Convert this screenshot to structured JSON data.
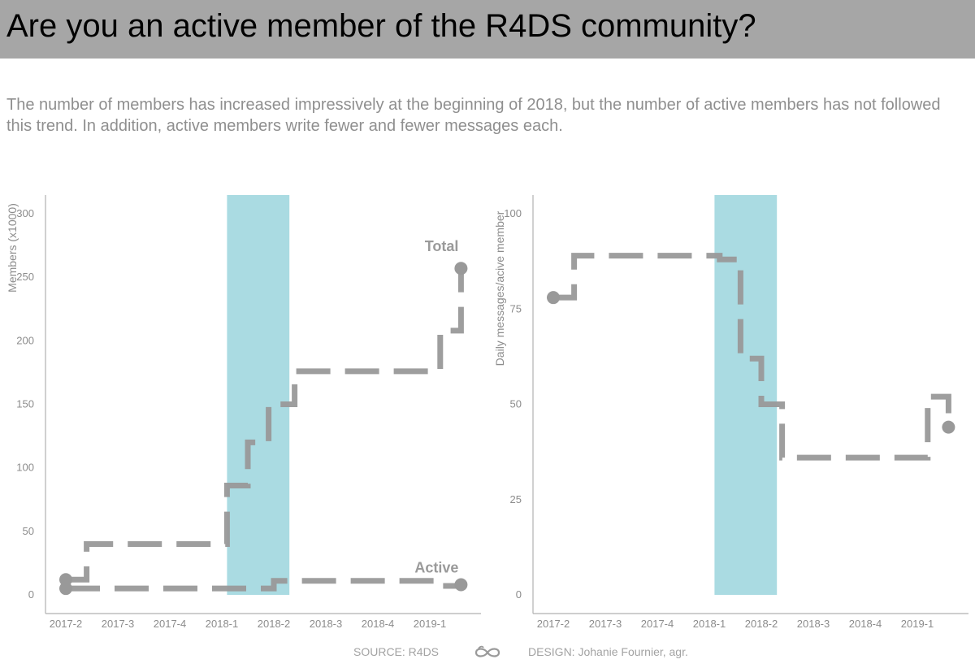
{
  "title": "Are you an active member of the R4DS community?",
  "subtitle": "The number of members has increased impressively at the beginning of 2018, but the number of active members has not followed this trend. In addition, active members write fewer and fewer messages each.",
  "footer": {
    "source": "SOURCE: R4DS",
    "design": "DESIGN: Johanie Fournier, agr.",
    "logo_icon": "infinity-logo-icon"
  },
  "colors": {
    "line": "#999999",
    "highlight": "#aadbe2",
    "text": "#8c8c8c"
  },
  "chart_data": [
    {
      "type": "line",
      "line_style": "dashed-step",
      "ylabel": "Members (x1000)",
      "xlabel": "",
      "x_ticks": [
        "2017-2",
        "2017-3",
        "2017-4",
        "2018-1",
        "2018-2",
        "2018-3",
        "2018-4",
        "2019-1"
      ],
      "y_ticks": [
        0,
        50,
        100,
        150,
        200,
        250,
        300
      ],
      "ylim": [
        0,
        315
      ],
      "highlight_band": {
        "from": "2018-1",
        "to": "2018-2"
      },
      "series": [
        {
          "name": "Total",
          "x": [
            "2017-2",
            "2017-2.4",
            "2018-1.1",
            "2018-1.5",
            "2018-1.9",
            "2018-2.4",
            "2019-1.2",
            "2019-1.6"
          ],
          "values": [
            12,
            40,
            86,
            120,
            150,
            176,
            208,
            257
          ]
        },
        {
          "name": "Active",
          "x": [
            "2017-2",
            "2018-1.1",
            "2018-2",
            "2019-1.2",
            "2019-1.6"
          ],
          "values": [
            5,
            5,
            11,
            7,
            8
          ]
        }
      ]
    },
    {
      "type": "line",
      "line_style": "dashed-step",
      "ylabel": "Daily messages/acive member",
      "xlabel": "",
      "x_ticks": [
        "2017-2",
        "2017-3",
        "2017-4",
        "2018-1",
        "2018-2",
        "2018-3",
        "2018-4",
        "2019-1"
      ],
      "y_ticks": [
        0,
        25,
        50,
        75,
        100
      ],
      "ylim": [
        0,
        105
      ],
      "highlight_band": {
        "from": "2018-1",
        "to": "2018-2"
      },
      "series": [
        {
          "x": [
            "2017-2",
            "2017-2.4",
            "2018-1.2",
            "2018-1.6",
            "2018-2",
            "2018-2.4",
            "2019-1.2",
            "2019-1.6"
          ],
          "values": [
            78,
            89,
            88,
            62,
            50,
            36,
            52,
            44
          ]
        }
      ]
    }
  ]
}
